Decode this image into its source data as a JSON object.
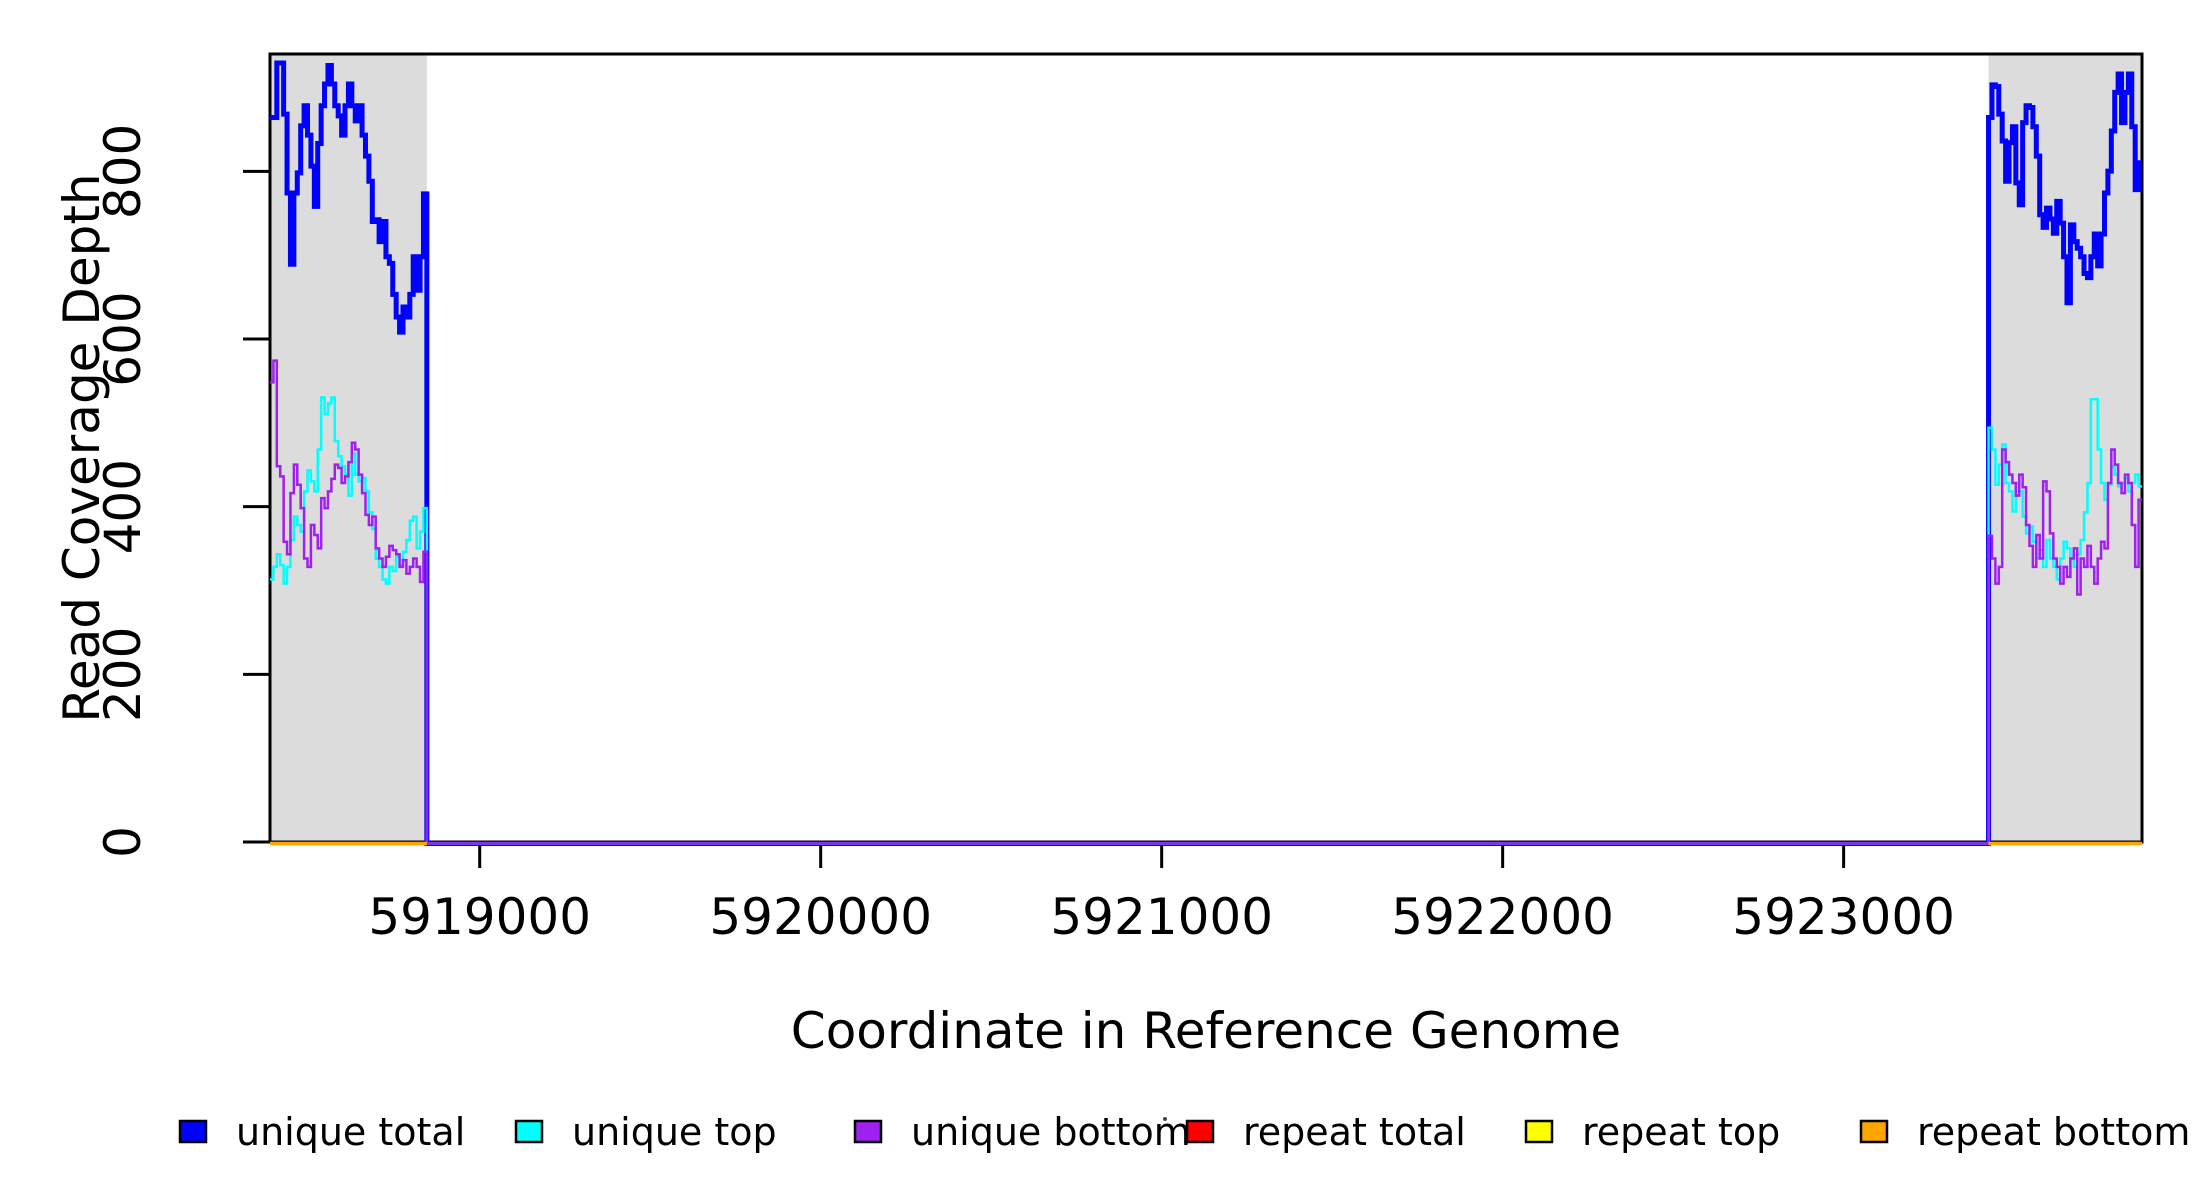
{
  "chart_data": {
    "type": "step-line",
    "xlabel": "Coordinate in Reference Genome",
    "ylabel": "Read Coverage Depth",
    "xlim": [
      5918385,
      5923875
    ],
    "ylim": [
      0,
      940
    ],
    "x_ticks": [
      5919000,
      5920000,
      5921000,
      5922000,
      5923000
    ],
    "y_ticks": [
      0,
      200,
      400,
      600,
      800
    ],
    "grid": false,
    "legend_position": "bottom",
    "region_color": "#DCDCDC",
    "frame_color": "#000000",
    "highlight_regions": [
      {
        "x1": 5918385,
        "x2": 5918845
      },
      {
        "x1": 5923425,
        "x2": 5923875
      }
    ],
    "series": [
      {
        "name": "unique total",
        "color": "#0000FF",
        "width": 5,
        "joined": true,
        "parts": [
          {
            "x0": 5918385,
            "dx": 10,
            "v": [
              866,
              866,
              931,
              931,
              870,
              776,
              691,
              776,
              800,
              856,
              880,
              845,
              808,
              760,
              835,
              880,
              906,
              928,
              906,
              880,
              868,
              845,
              880,
              906,
              880,
              862,
              880,
              845,
              820,
              790,
              742,
              744,
              718,
              742,
              700,
              692,
              655,
              628,
              610,
              640,
              628,
              655,
              700,
              660,
              700,
              775
            ]
          },
          {
            "x0": 5918845,
            "dx": 4580,
            "v": [
              0
            ]
          },
          {
            "x0": 5923425,
            "dx": 10,
            "v": [
              866,
              905,
              903,
              870,
              838,
              790,
              836,
              855,
              788,
              762,
              860,
              880,
              878,
              855,
              820,
              750,
              735,
              758,
              745,
              728,
              766,
              740,
              700,
              645,
              738,
              718,
              710,
              700,
              680,
              675,
              700,
              727,
              689,
              727,
              776,
              802,
              850,
              896,
              918,
              860,
              896,
              918,
              855,
              780,
              812
            ]
          }
        ]
      },
      {
        "name": "unique top",
        "color": "#00FFFF",
        "width": 2.5,
        "joined": true,
        "parts": [
          {
            "x0": 5918385,
            "dx": 10,
            "v": [
              315,
              330,
              345,
              332,
              310,
              330,
              362,
              390,
              380,
              372,
              420,
              445,
              432,
              420,
              470,
              532,
              512,
              525,
              532,
              480,
              462,
              450,
              440,
              415,
              465,
              440,
              432,
              436,
              420,
              395,
              375,
              340,
              330,
              315,
              310,
              330,
              325,
              342,
              332,
              348,
              362,
              385,
              390,
              352,
              372,
              400
            ]
          },
          {
            "x0": 5918845,
            "dx": 4580,
            "v": [
              0
            ]
          },
          {
            "x0": 5923425,
            "dx": 10,
            "v": [
              496,
              470,
              428,
              452,
              476,
              430,
              420,
              396,
              430,
              420,
              390,
              370,
              378,
              360,
              340,
              350,
              330,
              362,
              340,
              330,
              315,
              340,
              360,
              352,
              340,
              330,
              345,
              362,
              395,
              430,
              530,
              530,
              470,
              430,
              410,
              428,
              450,
              440,
              426,
              430,
              436,
              420,
              430,
              440,
              426
            ]
          }
        ]
      },
      {
        "name": "unique bottom",
        "color": "#A020F0",
        "width": 2.5,
        "joined": true,
        "parts": [
          {
            "x0": 5918385,
            "dx": 10,
            "v": [
              550,
              576,
              450,
              438,
              360,
              345,
              418,
              452,
              428,
              400,
              340,
              330,
              380,
              368,
              352,
              412,
              400,
              420,
              435,
              452,
              448,
              430,
              438,
              455,
              478,
              470,
              440,
              418,
              392,
              380,
              390,
              352,
              340,
              330,
              342,
              355,
              350,
              345,
              330,
              338,
              322,
              330,
              340,
              330,
              312,
              348
            ]
          },
          {
            "x0": 5918845,
            "dx": 4580,
            "v": [
              0
            ]
          },
          {
            "x0": 5923425,
            "dx": 10,
            "v": [
              367,
              340,
              310,
              330,
              470,
              455,
              440,
              430,
              415,
              440,
              425,
              380,
              355,
              330,
              368,
              340,
              432,
              420,
              370,
              340,
              330,
              310,
              330,
              318,
              340,
              352,
              297,
              340,
              330,
              355,
              330,
              310,
              340,
              360,
              352,
              430,
              470,
              452,
              430,
              418,
              440,
              430,
              380,
              330,
              410
            ]
          }
        ]
      },
      {
        "name": "repeat total",
        "color": "#FF0000",
        "width": 3,
        "joined": false,
        "parts": [
          {
            "x0": 5918385,
            "dx": 460,
            "v": [
              0
            ]
          },
          {
            "x0": 5923425,
            "dx": 450,
            "v": [
              0
            ]
          }
        ]
      },
      {
        "name": "repeat top",
        "color": "#FFFF00",
        "width": 3,
        "joined": false,
        "parts": [
          {
            "x0": 5918385,
            "dx": 460,
            "v": [
              0
            ]
          },
          {
            "x0": 5923425,
            "dx": 450,
            "v": [
              0
            ]
          }
        ]
      },
      {
        "name": "repeat bottom",
        "color": "#FFA500",
        "width": 3.5,
        "joined": false,
        "parts": [
          {
            "x0": 5918385,
            "dx": 460,
            "v": [
              0
            ]
          },
          {
            "x0": 5923425,
            "dx": 450,
            "v": [
              0
            ]
          }
        ]
      }
    ],
    "legend": {
      "items": [
        {
          "label": "unique total",
          "color": "#0000FF"
        },
        {
          "label": "unique top",
          "color": "#00FFFF"
        },
        {
          "label": "unique bottom",
          "color": "#A020F0"
        },
        {
          "label": "repeat total",
          "color": "#FF0000"
        },
        {
          "label": "repeat top",
          "color": "#FFFF00"
        },
        {
          "label": "repeat bottom",
          "color": "#FFA500"
        }
      ]
    },
    "artifacts": [
      {
        "type": "stray-dot"
      }
    ]
  }
}
